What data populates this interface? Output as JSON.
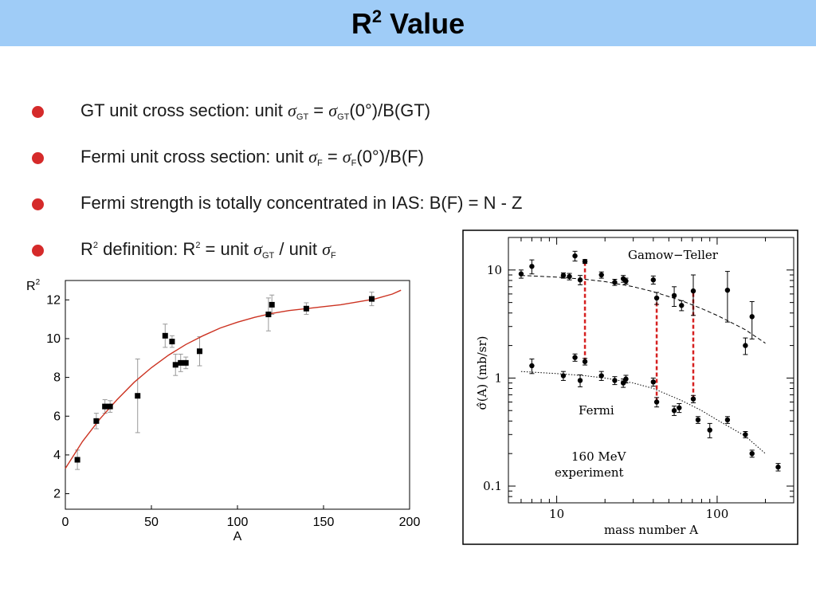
{
  "title": {
    "main": "R",
    "sup": "2",
    "rest": " Value"
  },
  "bullets": [
    {
      "pre": "GT unit cross section: unit ",
      "sym1": "σ",
      "sub1": "GT",
      "mid": " = ",
      "sym2": "σ",
      "sub2": "GT",
      "post": "(0°)/B(GT)"
    },
    {
      "pre": "Fermi unit cross section: unit ",
      "sym1": "σ",
      "sub1": "F",
      "mid": " = ",
      "sym2": "σ",
      "sub2": "F",
      "post": "(0°)/B(F)"
    },
    {
      "text": "Fermi strength is totally concentrated in IAS: B(F) = N - Z"
    },
    {
      "pre": "R",
      "sup1": "2",
      "mid1": " definition: R",
      "sup2": "2",
      "mid2": " = unit ",
      "sym1": "σ",
      "sub1": "GT",
      "mid3": " / unit ",
      "sym2": "σ",
      "sub2": "F"
    }
  ],
  "colors": {
    "title_bar": "#9fccf7",
    "bullet": "#d52a2a",
    "fit_curve": "#cc3322",
    "dashed_link": "#d62020"
  },
  "chart_data": [
    {
      "type": "scatter",
      "ylabel_main": "R",
      "ylabel_sup": "2",
      "xlabel": "A",
      "xlim": [
        0,
        200
      ],
      "ylim": [
        1.2,
        13.0
      ],
      "xticks": [
        0,
        50,
        100,
        150,
        200
      ],
      "yticks": [
        2,
        4,
        6,
        8,
        10,
        12
      ],
      "grid": false,
      "points": [
        {
          "x": 7,
          "y": 3.75,
          "err": 0.5
        },
        {
          "x": 18,
          "y": 5.75,
          "err": 0.4
        },
        {
          "x": 23,
          "y": 6.5,
          "err": 0.35
        },
        {
          "x": 26,
          "y": 6.5,
          "err": 0.3
        },
        {
          "x": 42,
          "y": 7.05,
          "err": 1.9
        },
        {
          "x": 58,
          "y": 10.15,
          "err": 0.6
        },
        {
          "x": 62,
          "y": 9.85,
          "err": 0.3
        },
        {
          "x": 64,
          "y": 8.65,
          "err": 0.55
        },
        {
          "x": 67,
          "y": 8.75,
          "err": 0.45
        },
        {
          "x": 70,
          "y": 8.75,
          "err": 0.3
        },
        {
          "x": 78,
          "y": 9.35,
          "err": 0.75
        },
        {
          "x": 118,
          "y": 11.25,
          "err": 0.85
        },
        {
          "x": 120,
          "y": 11.75,
          "err": 0.5
        },
        {
          "x": 140,
          "y": 11.55,
          "err": 0.3
        },
        {
          "x": 178,
          "y": 12.05,
          "err": 0.35
        }
      ],
      "fit_curve": [
        [
          0,
          3.3
        ],
        [
          10,
          4.7
        ],
        [
          20,
          5.85
        ],
        [
          30,
          6.85
        ],
        [
          40,
          7.75
        ],
        [
          50,
          8.5
        ],
        [
          60,
          9.15
        ],
        [
          70,
          9.7
        ],
        [
          80,
          10.15
        ],
        [
          90,
          10.55
        ],
        [
          100,
          10.85
        ],
        [
          110,
          11.1
        ],
        [
          120,
          11.3
        ],
        [
          130,
          11.45
        ],
        [
          140,
          11.55
        ],
        [
          150,
          11.65
        ],
        [
          160,
          11.75
        ],
        [
          170,
          11.9
        ],
        [
          180,
          12.05
        ],
        [
          190,
          12.3
        ],
        [
          195,
          12.5
        ]
      ]
    },
    {
      "type": "scatter",
      "scale": "log-log",
      "xlabel": "mass number A",
      "ylabel": "σ̂(A) (mb/sr)",
      "xlim": [
        5,
        300
      ],
      "ylim": [
        0.07,
        20
      ],
      "xtick_labels": [
        {
          "v": 10,
          "label": "10"
        },
        {
          "v": 100,
          "label": "100"
        }
      ],
      "ytick_labels": [
        {
          "v": 10,
          "label": "10"
        },
        {
          "v": 1,
          "label": "1"
        },
        {
          "v": 0.1,
          "label": "0.1"
        }
      ],
      "annotations": [
        "Gamow−Teller",
        "Fermi",
        "160 MeV",
        "experiment"
      ],
      "series": [
        {
          "name": "Gamow−Teller",
          "points": [
            {
              "x": 6,
              "y": 9.2,
              "err": 0.8
            },
            {
              "x": 7,
              "y": 10.8,
              "err": 1.6
            },
            {
              "x": 11,
              "y": 8.9,
              "err": 0.5
            },
            {
              "x": 12,
              "y": 8.7,
              "err": 0.6
            },
            {
              "x": 13,
              "y": 13.5,
              "err": 1.4
            },
            {
              "x": 14,
              "y": 8.1,
              "err": 0.8
            },
            {
              "x": 15,
              "y": 12.0,
              "err": 0.5
            },
            {
              "x": 19,
              "y": 9.0,
              "err": 0.6
            },
            {
              "x": 23,
              "y": 7.7,
              "err": 0.5
            },
            {
              "x": 26,
              "y": 8.3,
              "err": 0.6
            },
            {
              "x": 27,
              "y": 7.9,
              "err": 0.5
            },
            {
              "x": 40,
              "y": 8.1,
              "err": 0.7
            },
            {
              "x": 42,
              "y": 5.5,
              "err": 0.7
            },
            {
              "x": 54,
              "y": 5.8,
              "err": 1.2
            },
            {
              "x": 60,
              "y": 4.7,
              "err": 0.5
            },
            {
              "x": 71,
              "y": 6.4,
              "err": 2.6
            },
            {
              "x": 116,
              "y": 6.5,
              "err": 3.2
            },
            {
              "x": 150,
              "y": 2.0,
              "err": 0.35
            },
            {
              "x": 165,
              "y": 3.7,
              "err": 1.4
            }
          ],
          "trend": [
            [
              6,
              8.9
            ],
            [
              10,
              8.6
            ],
            [
              15,
              8.2
            ],
            [
              20,
              7.8
            ],
            [
              30,
              7.0
            ],
            [
              40,
              6.3
            ],
            [
              60,
              5.2
            ],
            [
              80,
              4.4
            ],
            [
              100,
              3.8
            ],
            [
              150,
              2.8
            ],
            [
              200,
              2.1
            ]
          ]
        },
        {
          "name": "Fermi",
          "points": [
            {
              "x": 7,
              "y": 1.3,
              "err": 0.2
            },
            {
              "x": 11,
              "y": 1.05,
              "err": 0.1
            },
            {
              "x": 13,
              "y": 1.55,
              "err": 0.12
            },
            {
              "x": 14,
              "y": 0.95,
              "err": 0.12
            },
            {
              "x": 15,
              "y": 1.42,
              "err": 0.1
            },
            {
              "x": 19,
              "y": 1.05,
              "err": 0.1
            },
            {
              "x": 23,
              "y": 0.95,
              "err": 0.08
            },
            {
              "x": 26,
              "y": 0.9,
              "err": 0.08
            },
            {
              "x": 27,
              "y": 0.98,
              "err": 0.08
            },
            {
              "x": 40,
              "y": 0.92,
              "err": 0.08
            },
            {
              "x": 42,
              "y": 0.6,
              "err": 0.06
            },
            {
              "x": 54,
              "y": 0.5,
              "err": 0.05
            },
            {
              "x": 58,
              "y": 0.53,
              "err": 0.05
            },
            {
              "x": 71,
              "y": 0.64,
              "err": 0.05
            },
            {
              "x": 76,
              "y": 0.41,
              "err": 0.03
            },
            {
              "x": 90,
              "y": 0.33,
              "err": 0.05
            },
            {
              "x": 116,
              "y": 0.41,
              "err": 0.03
            },
            {
              "x": 150,
              "y": 0.3,
              "err": 0.02
            },
            {
              "x": 165,
              "y": 0.2,
              "err": 0.015
            },
            {
              "x": 240,
              "y": 0.15,
              "err": 0.012
            }
          ],
          "trend": [
            [
              6,
              1.15
            ],
            [
              10,
              1.1
            ],
            [
              15,
              1.05
            ],
            [
              20,
              1.0
            ],
            [
              30,
              0.9
            ],
            [
              40,
              0.8
            ],
            [
              60,
              0.62
            ],
            [
              80,
              0.5
            ],
            [
              100,
              0.41
            ],
            [
              150,
              0.29
            ],
            [
              200,
              0.2
            ]
          ]
        }
      ],
      "links": [
        {
          "x": 15,
          "from": 1.42,
          "to": 12.0
        },
        {
          "x": 42,
          "from": 0.6,
          "to": 5.5
        },
        {
          "x": 71,
          "from": 0.64,
          "to": 6.4
        }
      ]
    }
  ]
}
